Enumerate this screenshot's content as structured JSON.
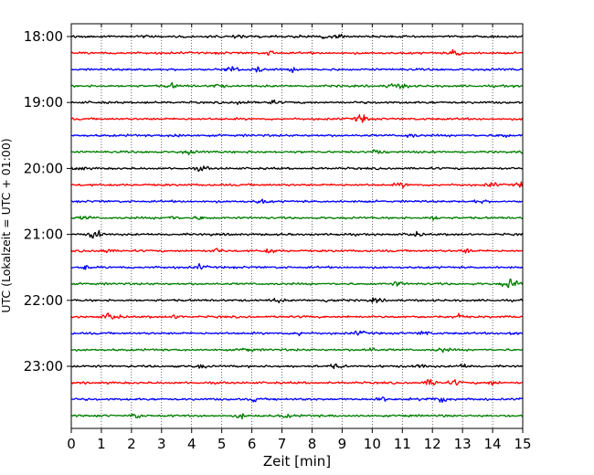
{
  "chart_data": {
    "type": "line",
    "title": "",
    "xlabel": "Zeit  [min]",
    "ylabel": "UTC (Lokalzeit = UTC + 01:00)",
    "xlim": [
      0,
      15
    ],
    "x_ticks": [
      "0",
      "1",
      "2",
      "3",
      "4",
      "5",
      "6",
      "7",
      "8",
      "9",
      "10",
      "11",
      "12",
      "13",
      "14",
      "15"
    ],
    "y_hour_labels": [
      "18:00",
      "19:00",
      "20:00",
      "21:00",
      "22:00",
      "23:00"
    ],
    "rows_per_hour": 4,
    "row_minutes": 15,
    "colors": [
      "#000000",
      "#ff0000",
      "#0000ff",
      "#007f00"
    ],
    "grid_x": true,
    "grid_style": "dotted",
    "traces": [
      {
        "start": "18:00",
        "color": "#000000"
      },
      {
        "start": "18:15",
        "color": "#ff0000"
      },
      {
        "start": "18:30",
        "color": "#0000ff"
      },
      {
        "start": "18:45",
        "color": "#007f00"
      },
      {
        "start": "19:00",
        "color": "#000000"
      },
      {
        "start": "19:15",
        "color": "#ff0000"
      },
      {
        "start": "19:30",
        "color": "#0000ff"
      },
      {
        "start": "19:45",
        "color": "#007f00"
      },
      {
        "start": "20:00",
        "color": "#000000"
      },
      {
        "start": "20:15",
        "color": "#ff0000"
      },
      {
        "start": "20:30",
        "color": "#0000ff"
      },
      {
        "start": "20:45",
        "color": "#007f00"
      },
      {
        "start": "21:00",
        "color": "#000000"
      },
      {
        "start": "21:15",
        "color": "#ff0000"
      },
      {
        "start": "21:30",
        "color": "#0000ff"
      },
      {
        "start": "21:45",
        "color": "#007f00"
      },
      {
        "start": "22:00",
        "color": "#000000"
      },
      {
        "start": "22:15",
        "color": "#ff0000"
      },
      {
        "start": "22:30",
        "color": "#0000ff"
      },
      {
        "start": "22:45",
        "color": "#007f00"
      },
      {
        "start": "23:00",
        "color": "#000000"
      },
      {
        "start": "23:15",
        "color": "#ff0000"
      },
      {
        "start": "23:30",
        "color": "#0000ff"
      },
      {
        "start": "23:45",
        "color": "#007f00"
      }
    ]
  }
}
